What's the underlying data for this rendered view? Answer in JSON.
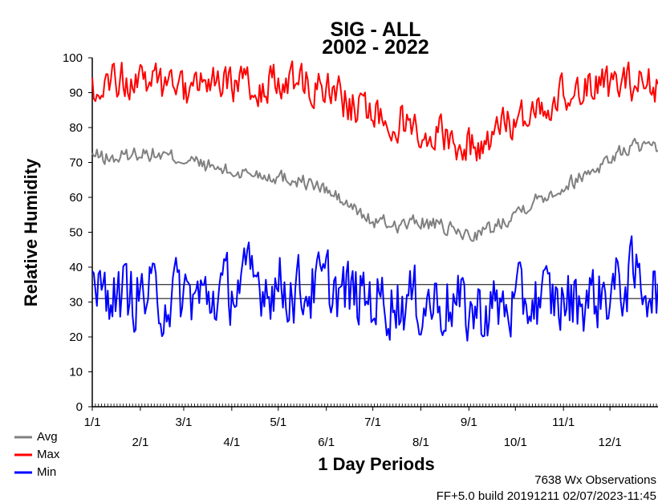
{
  "chart_data": {
    "type": "line",
    "title": "SIG - ALL",
    "subtitle": "2002 - 2022",
    "xlabel": "1 Day Periods",
    "ylabel": "Relative Humidity",
    "ylim": [
      0,
      100
    ],
    "yticks": [
      "0",
      "10",
      "20",
      "30",
      "40",
      "50",
      "60",
      "70",
      "80",
      "90",
      "100"
    ],
    "xlim": [
      1,
      366
    ],
    "x_ticks_upper": [
      {
        "label": "1/1",
        "day": 1
      },
      {
        "label": "3/1",
        "day": 60
      },
      {
        "label": "5/1",
        "day": 121
      },
      {
        "label": "7/1",
        "day": 182
      },
      {
        "label": "9/1",
        "day": 244
      },
      {
        "label": "11/1",
        "day": 305
      }
    ],
    "x_ticks_lower": [
      {
        "label": "2/1",
        "day": 32
      },
      {
        "label": "4/1",
        "day": 91
      },
      {
        "label": "6/1",
        "day": 152
      },
      {
        "label": "8/1",
        "day": 213
      },
      {
        "label": "10/1",
        "day": 274
      },
      {
        "label": "12/1",
        "day": 335
      }
    ],
    "reference_lines": [
      31,
      35
    ],
    "grid": false,
    "legend_position": "bottom-left",
    "series": [
      {
        "name": "Avg",
        "color": "#808080",
        "days": [
          1,
          15,
          32,
          45,
          60,
          75,
          91,
          105,
          121,
          135,
          152,
          165,
          182,
          200,
          213,
          230,
          244,
          259,
          274,
          290,
          305,
          320,
          335,
          350,
          366
        ],
        "values": [
          72,
          71,
          73,
          72,
          71,
          69,
          67,
          67,
          66,
          65,
          62,
          58,
          53,
          52,
          53,
          51,
          49,
          51,
          56,
          60,
          63,
          67,
          71,
          75,
          73
        ]
      },
      {
        "name": "Max",
        "color": "#ff0000",
        "days": [
          1,
          15,
          32,
          45,
          60,
          75,
          91,
          105,
          121,
          135,
          152,
          165,
          182,
          200,
          213,
          230,
          244,
          259,
          274,
          290,
          305,
          320,
          335,
          350,
          366
        ],
        "values": [
          92,
          94,
          93,
          92,
          91,
          92,
          91,
          92,
          93,
          92,
          92,
          87,
          84,
          82,
          80,
          78,
          74,
          78,
          82,
          87,
          90,
          92,
          92,
          93,
          92
        ]
      },
      {
        "name": "Min",
        "color": "#0000ff",
        "days": [
          1,
          15,
          32,
          45,
          60,
          75,
          91,
          105,
          121,
          135,
          152,
          165,
          182,
          200,
          213,
          230,
          244,
          259,
          274,
          290,
          305,
          320,
          335,
          350,
          366
        ],
        "values": [
          34,
          32,
          32,
          31,
          32,
          31,
          34,
          36,
          35,
          33,
          35,
          32,
          31,
          30,
          30,
          30,
          27,
          28,
          29,
          31,
          30,
          31,
          33,
          37,
          34
        ]
      }
    ]
  },
  "footer": {
    "observations": "7638 Wx Observations",
    "build": "FF+5.0 build 20191211 02/07/2023-11:45"
  }
}
